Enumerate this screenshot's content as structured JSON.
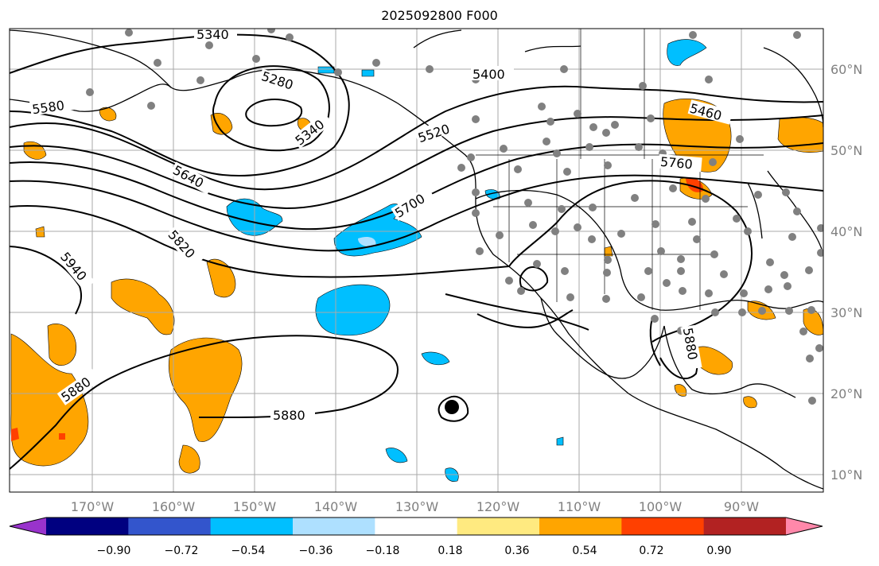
{
  "title": "2025092800 F000",
  "map": {
    "projection": "PlateCarree",
    "lon_range": [
      -180,
      -80
    ],
    "lat_range": [
      8,
      65
    ],
    "lon_ticks": [
      "170°W",
      "160°W",
      "150°W",
      "140°W",
      "130°W",
      "120°W",
      "110°W",
      "100°W",
      "90°W"
    ],
    "lat_ticks": [
      "60°N",
      "50°N",
      "40°N",
      "30°N",
      "20°N",
      "10°N"
    ],
    "contour_labels": [
      "5340",
      "5280",
      "5400",
      "5580",
      "5340",
      "5520",
      "5460",
      "5640",
      "5700",
      "5760",
      "5820",
      "5940",
      "5880",
      "5880",
      "5880"
    ],
    "gridlines": true,
    "station_marker_color": "#808080",
    "contour_color": "#000000",
    "coastline_color": "#000000"
  },
  "colorbar": {
    "tick_labels": [
      "−0.90",
      "−0.72",
      "−0.54",
      "−0.36",
      "−0.18",
      "0.18",
      "0.36",
      "0.54",
      "0.72",
      "0.90"
    ],
    "colors": [
      "#9933cc",
      "#000080",
      "#3355cc",
      "#00bfff",
      "#aee0ff",
      "#ffffff",
      "#ffea80",
      "#ffa500",
      "#ff4000",
      "#b22222",
      "#ff88aa"
    ],
    "extend": "both"
  }
}
